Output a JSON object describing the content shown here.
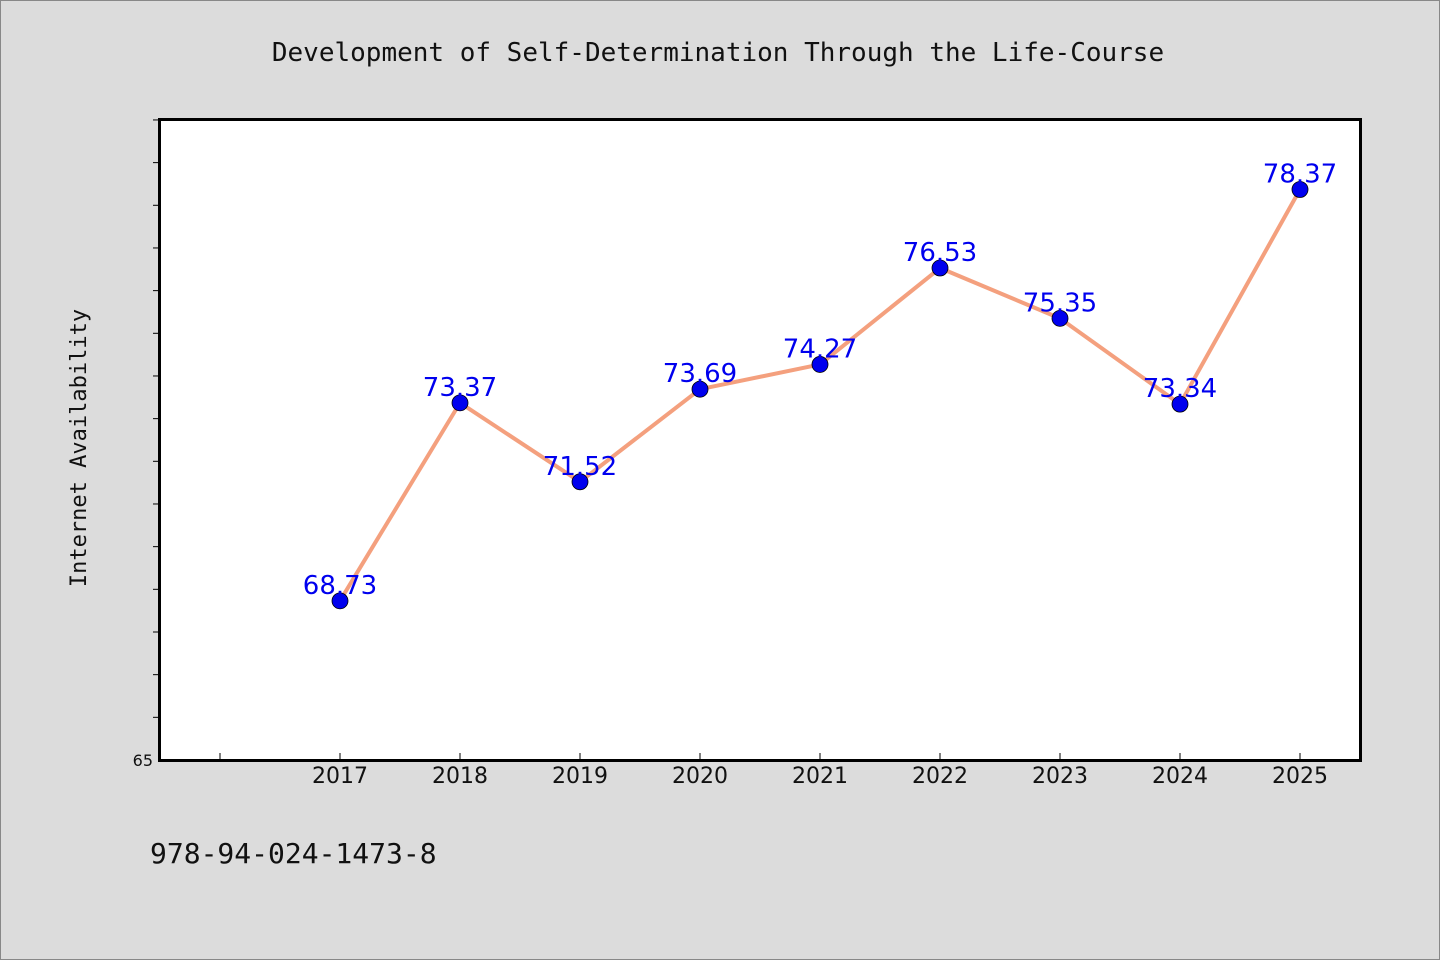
{
  "chart_data": {
    "type": "line",
    "title": "Development of Self-Determination Through the Life-Course",
    "xlabel": "",
    "ylabel": "Internet Availability",
    "categories": [
      "2017",
      "2018",
      "2019",
      "2020",
      "2021",
      "2022",
      "2023",
      "2024",
      "2025"
    ],
    "series": [
      {
        "values": [
          68.73,
          73.37,
          71.52,
          73.69,
          74.27,
          76.53,
          75.35,
          73.34,
          78.37
        ]
      }
    ],
    "ylim": [
      65,
      80
    ],
    "y_tick_label": "65",
    "data_labels": true,
    "grid": false,
    "colors": {
      "line": "#f4a07e",
      "marker": "#0000ee",
      "label": "#0000ee"
    }
  },
  "footer": {
    "isbn": "978-94-024-1473-8"
  }
}
